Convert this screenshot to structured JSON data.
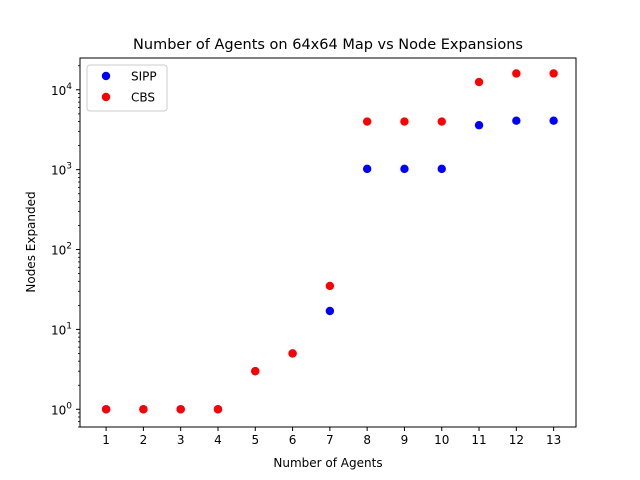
{
  "chart_data": {
    "type": "scatter",
    "title": "Number of Agents on 64x64 Map vs Node Expansions",
    "xlabel": "Number of Agents",
    "ylabel": "Nodes Expanded",
    "x_ticks": [
      1,
      2,
      3,
      4,
      5,
      6,
      7,
      8,
      9,
      10,
      11,
      12,
      13
    ],
    "x_range": [
      0.3,
      13.6
    ],
    "y_scale": "log",
    "y_range": [
      0.6,
      25000
    ],
    "y_ticks": [
      {
        "base": "10",
        "exp": "0",
        "value": 1
      },
      {
        "base": "10",
        "exp": "1",
        "value": 10
      },
      {
        "base": "10",
        "exp": "2",
        "value": 100
      },
      {
        "base": "10",
        "exp": "3",
        "value": 1000
      },
      {
        "base": "10",
        "exp": "4",
        "value": 10000
      }
    ],
    "grid": false,
    "legend_position": "top-left",
    "series": [
      {
        "name": "SIPP",
        "color": "#0000ff",
        "x": [
          1,
          2,
          3,
          4,
          5,
          6,
          7,
          8,
          9,
          10,
          11,
          12,
          13
        ],
        "y": [
          1,
          1,
          1,
          1,
          3,
          5,
          17,
          1023,
          1023,
          1023,
          3600,
          4100,
          4100
        ]
      },
      {
        "name": "CBS",
        "color": "#ff0000",
        "x": [
          1,
          2,
          3,
          4,
          5,
          6,
          7,
          8,
          9,
          10,
          11,
          12,
          13
        ],
        "y": [
          1,
          1,
          1,
          1,
          3,
          5,
          35,
          4000,
          4000,
          4000,
          12500,
          16000,
          16000
        ]
      }
    ]
  }
}
